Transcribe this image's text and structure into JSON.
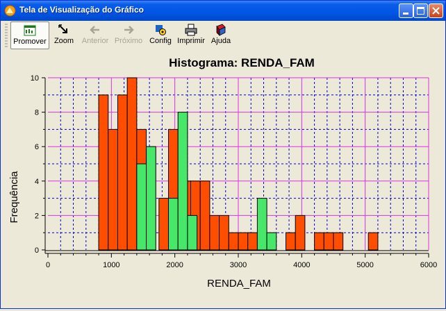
{
  "window": {
    "title": "Tela de Visualização do Gráfico"
  },
  "toolbar": {
    "buttons": [
      {
        "label": "Promover",
        "icon": "promote-icon",
        "state": "active"
      },
      {
        "label": "Zoom",
        "icon": "zoom-icon",
        "state": "enabled"
      },
      {
        "label": "Anterior",
        "icon": "arrow-left-icon",
        "state": "disabled"
      },
      {
        "label": "Próximo",
        "icon": "arrow-right-icon",
        "state": "disabled"
      },
      {
        "label": "Config",
        "icon": "config-icon",
        "state": "enabled"
      },
      {
        "label": "Imprimir",
        "icon": "printer-icon",
        "state": "enabled"
      },
      {
        "label": "Ajuda",
        "icon": "help-book-icon",
        "state": "enabled"
      }
    ]
  },
  "colors": {
    "orange": "#ff4e00",
    "green": "#47e86a",
    "major_grid": "#e030e0",
    "minor_grid": "#0000cc"
  },
  "chart_data": {
    "type": "bar",
    "title": "Histograma: RENDA_FAM",
    "xlabel": "RENDA_FAM",
    "ylabel": "Frequência",
    "xlim": [
      0,
      6000
    ],
    "ylim": [
      0,
      10
    ],
    "x_ticks": [
      "0",
      "1000",
      "2000",
      "3000",
      "4000",
      "5000",
      "6000"
    ],
    "y_ticks": [
      "0",
      "2",
      "4",
      "6",
      "8",
      "10"
    ],
    "grid": true,
    "series": [
      {
        "color": "orange",
        "bars": [
          [
            800,
            9
          ],
          [
            950,
            7
          ],
          [
            1100,
            9
          ],
          [
            1250,
            10
          ],
          [
            1400,
            7
          ],
          [
            1750,
            3
          ],
          [
            1900,
            7
          ],
          [
            2100,
            4
          ],
          [
            2250,
            4
          ],
          [
            2400,
            4
          ],
          [
            2550,
            2
          ],
          [
            2700,
            2
          ],
          [
            2850,
            1
          ],
          [
            3000,
            1
          ],
          [
            3150,
            1
          ],
          [
            3750,
            1
          ],
          [
            3900,
            2
          ],
          [
            4200,
            1
          ],
          [
            4350,
            1
          ],
          [
            4500,
            1
          ],
          [
            5050,
            1
          ]
        ]
      },
      {
        "color": "green",
        "bars": [
          [
            1400,
            5
          ],
          [
            1550,
            6
          ],
          [
            1900,
            3
          ],
          [
            2050,
            8
          ],
          [
            2200,
            2
          ],
          [
            3300,
            3
          ],
          [
            3450,
            1
          ]
        ]
      }
    ],
    "bin_width": 150
  }
}
